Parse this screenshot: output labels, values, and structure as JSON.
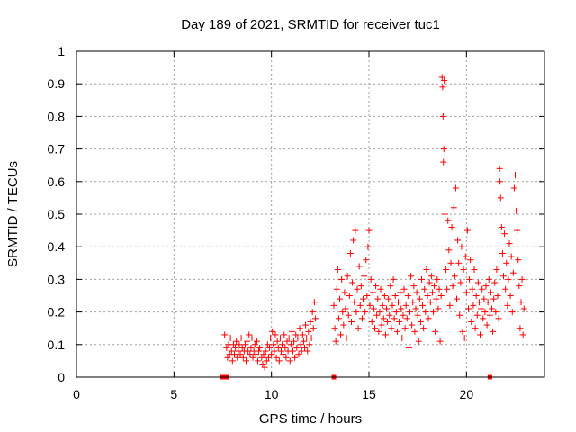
{
  "chart_data": {
    "type": "scatter",
    "title": "Day 189 of 2021, SRMTID for receiver tuc1",
    "xlabel": "GPS time / hours",
    "ylabel": "SRMTID / TECUs",
    "xlim": [
      0,
      24
    ],
    "ylim": [
      0,
      1
    ],
    "xticks": [
      0,
      5,
      10,
      15,
      20
    ],
    "yticks": [
      0,
      0.1,
      0.2,
      0.3,
      0.4,
      0.5,
      0.6,
      0.7,
      0.8,
      0.9,
      1
    ],
    "ytick_labels": [
      "0",
      "0.1",
      "0.2",
      "0.3",
      "0.4",
      "0.5",
      "0.6",
      "0.7",
      "0.8",
      "0.9",
      "1"
    ],
    "grid": true,
    "marker": "+",
    "color": "#ff0000",
    "zero_markers_x": [
      7.5,
      7.6,
      7.7,
      13.2,
      21.2
    ],
    "series": [
      {
        "name": "SRMTID",
        "points": [
          [
            7.6,
            0.13
          ],
          [
            7.7,
            0.09
          ],
          [
            7.75,
            0.06
          ],
          [
            7.8,
            0.1
          ],
          [
            7.85,
            0.07
          ],
          [
            7.9,
            0.12
          ],
          [
            7.95,
            0.08
          ],
          [
            8.0,
            0.05
          ],
          [
            8.05,
            0.1
          ],
          [
            8.1,
            0.07
          ],
          [
            8.15,
            0.09
          ],
          [
            8.2,
            0.11
          ],
          [
            8.25,
            0.06
          ],
          [
            8.3,
            0.08
          ],
          [
            8.35,
            0.1
          ],
          [
            8.4,
            0.07
          ],
          [
            8.45,
            0.12
          ],
          [
            8.5,
            0.09
          ],
          [
            8.55,
            0.06
          ],
          [
            8.6,
            0.08
          ],
          [
            8.65,
            0.1
          ],
          [
            8.7,
            0.05
          ],
          [
            8.75,
            0.11
          ],
          [
            8.8,
            0.08
          ],
          [
            8.85,
            0.13
          ],
          [
            8.9,
            0.07
          ],
          [
            8.95,
            0.09
          ],
          [
            9.0,
            0.12
          ],
          [
            9.05,
            0.06
          ],
          [
            9.1,
            0.08
          ],
          [
            9.15,
            0.1
          ],
          [
            9.2,
            0.07
          ],
          [
            9.25,
            0.11
          ],
          [
            9.3,
            0.05
          ],
          [
            9.35,
            0.08
          ],
          [
            9.4,
            0.09
          ],
          [
            9.5,
            0.06
          ],
          [
            9.55,
            0.04
          ],
          [
            9.6,
            0.07
          ],
          [
            9.65,
            0.03
          ],
          [
            9.7,
            0.08
          ],
          [
            9.75,
            0.05
          ],
          [
            9.8,
            0.1
          ],
          [
            9.85,
            0.06
          ],
          [
            9.9,
            0.09
          ],
          [
            9.95,
            0.12
          ],
          [
            10.0,
            0.07
          ],
          [
            10.05,
            0.14
          ],
          [
            10.1,
            0.1
          ],
          [
            10.15,
            0.08
          ],
          [
            10.2,
            0.13
          ],
          [
            10.25,
            0.06
          ],
          [
            10.3,
            0.11
          ],
          [
            10.35,
            0.09
          ],
          [
            10.4,
            0.05
          ],
          [
            10.45,
            0.12
          ],
          [
            10.5,
            0.08
          ],
          [
            10.55,
            0.1
          ],
          [
            10.6,
            0.07
          ],
          [
            10.65,
            0.13
          ],
          [
            10.7,
            0.09
          ],
          [
            10.75,
            0.06
          ],
          [
            10.8,
            0.11
          ],
          [
            10.85,
            0.08
          ],
          [
            10.9,
            0.12
          ],
          [
            10.95,
            0.05
          ],
          [
            11.0,
            0.1
          ],
          [
            11.05,
            0.14
          ],
          [
            11.1,
            0.08
          ],
          [
            11.15,
            0.11
          ],
          [
            11.2,
            0.06
          ],
          [
            11.25,
            0.13
          ],
          [
            11.3,
            0.09
          ],
          [
            11.35,
            0.12
          ],
          [
            11.4,
            0.07
          ],
          [
            11.45,
            0.15
          ],
          [
            11.5,
            0.1
          ],
          [
            11.55,
            0.08
          ],
          [
            11.6,
            0.13
          ],
          [
            11.65,
            0.11
          ],
          [
            11.7,
            0.09
          ],
          [
            11.75,
            0.16
          ],
          [
            11.8,
            0.12
          ],
          [
            11.85,
            0.08
          ],
          [
            11.9,
            0.14
          ],
          [
            11.95,
            0.1
          ],
          [
            12.0,
            0.17
          ],
          [
            12.05,
            0.12
          ],
          [
            12.1,
            0.2
          ],
          [
            12.15,
            0.15
          ],
          [
            12.2,
            0.23
          ],
          [
            12.25,
            0.18
          ],
          [
            13.2,
            0.22
          ],
          [
            13.25,
            0.15
          ],
          [
            13.3,
            0.11
          ],
          [
            13.35,
            0.27
          ],
          [
            13.4,
            0.33
          ],
          [
            13.45,
            0.18
          ],
          [
            13.5,
            0.24
          ],
          [
            13.55,
            0.13
          ],
          [
            13.6,
            0.3
          ],
          [
            13.65,
            0.2
          ],
          [
            13.7,
            0.16
          ],
          [
            13.75,
            0.26
          ],
          [
            13.8,
            0.21
          ],
          [
            13.85,
            0.12
          ],
          [
            13.9,
            0.31
          ],
          [
            13.95,
            0.19
          ],
          [
            14.0,
            0.25
          ],
          [
            14.05,
            0.38
          ],
          [
            14.1,
            0.17
          ],
          [
            14.15,
            0.29
          ],
          [
            14.2,
            0.42
          ],
          [
            14.25,
            0.23
          ],
          [
            14.3,
            0.45
          ],
          [
            14.35,
            0.2
          ],
          [
            14.4,
            0.27
          ],
          [
            14.45,
            0.15
          ],
          [
            14.5,
            0.34
          ],
          [
            14.55,
            0.22
          ],
          [
            14.6,
            0.28
          ],
          [
            14.65,
            0.18
          ],
          [
            14.7,
            0.24
          ],
          [
            14.75,
            0.31
          ],
          [
            14.8,
            0.2
          ],
          [
            14.85,
            0.36
          ],
          [
            14.9,
            0.25
          ],
          [
            14.95,
            0.4
          ],
          [
            15.0,
            0.45
          ],
          [
            15.05,
            0.22
          ],
          [
            15.1,
            0.3
          ],
          [
            15.15,
            0.17
          ],
          [
            15.2,
            0.26
          ],
          [
            15.25,
            0.21
          ],
          [
            15.3,
            0.15
          ],
          [
            15.35,
            0.28
          ],
          [
            15.4,
            0.19
          ],
          [
            15.45,
            0.24
          ],
          [
            15.5,
            0.14
          ],
          [
            15.55,
            0.2
          ],
          [
            15.6,
            0.27
          ],
          [
            15.65,
            0.16
          ],
          [
            15.7,
            0.22
          ],
          [
            15.75,
            0.18
          ],
          [
            15.8,
            0.25
          ],
          [
            15.85,
            0.13
          ],
          [
            15.9,
            0.21
          ],
          [
            15.95,
            0.17
          ],
          [
            16.0,
            0.24
          ],
          [
            16.05,
            0.19
          ],
          [
            16.1,
            0.28
          ],
          [
            16.15,
            0.15
          ],
          [
            16.2,
            0.22
          ],
          [
            16.25,
            0.3
          ],
          [
            16.3,
            0.18
          ],
          [
            16.35,
            0.25
          ],
          [
            16.4,
            0.2
          ],
          [
            16.45,
            0.14
          ],
          [
            16.5,
            0.23
          ],
          [
            16.55,
            0.17
          ],
          [
            16.6,
            0.26
          ],
          [
            16.65,
            0.21
          ],
          [
            16.7,
            0.12
          ],
          [
            16.75,
            0.19
          ],
          [
            16.8,
            0.27
          ],
          [
            16.85,
            0.15
          ],
          [
            16.9,
            0.22
          ],
          [
            16.95,
            0.18
          ],
          [
            17.0,
            0.25
          ],
          [
            17.05,
            0.09
          ],
          [
            17.1,
            0.2
          ],
          [
            17.15,
            0.31
          ],
          [
            17.2,
            0.16
          ],
          [
            17.25,
            0.23
          ],
          [
            17.3,
            0.28
          ],
          [
            17.35,
            0.14
          ],
          [
            17.4,
            0.21
          ],
          [
            17.45,
            0.26
          ],
          [
            17.5,
            0.19
          ],
          [
            17.55,
            0.11
          ],
          [
            17.6,
            0.24
          ],
          [
            17.65,
            0.17
          ],
          [
            17.7,
            0.3
          ],
          [
            17.75,
            0.22
          ],
          [
            17.8,
            0.15
          ],
          [
            17.85,
            0.27
          ],
          [
            17.9,
            0.2
          ],
          [
            17.95,
            0.33
          ],
          [
            18.0,
            0.25
          ],
          [
            18.05,
            0.18
          ],
          [
            18.1,
            0.29
          ],
          [
            18.15,
            0.23
          ],
          [
            18.2,
            0.31
          ],
          [
            18.25,
            0.26
          ],
          [
            18.3,
            0.2
          ],
          [
            18.35,
            0.28
          ],
          [
            18.4,
            0.14
          ],
          [
            18.45,
            0.24
          ],
          [
            18.5,
            0.3
          ],
          [
            18.55,
            0.21
          ],
          [
            18.6,
            0.27
          ],
          [
            18.65,
            0.11
          ],
          [
            18.7,
            0.25
          ],
          [
            18.75,
            0.92
          ],
          [
            18.78,
            0.89
          ],
          [
            18.8,
            0.8
          ],
          [
            18.82,
            0.66
          ],
          [
            18.84,
            0.7
          ],
          [
            18.86,
            0.91
          ],
          [
            18.9,
            0.5
          ],
          [
            18.95,
            0.33
          ],
          [
            19.0,
            0.27
          ],
          [
            19.05,
            0.48
          ],
          [
            19.1,
            0.39
          ],
          [
            19.15,
            0.22
          ],
          [
            19.2,
            0.35
          ],
          [
            19.25,
            0.46
          ],
          [
            19.3,
            0.28
          ],
          [
            19.35,
            0.52
          ],
          [
            19.4,
            0.31
          ],
          [
            19.45,
            0.58
          ],
          [
            19.5,
            0.24
          ],
          [
            19.55,
            0.42
          ],
          [
            19.6,
            0.35
          ],
          [
            19.65,
            0.19
          ],
          [
            19.7,
            0.29
          ],
          [
            19.75,
            0.4
          ],
          [
            19.8,
            0.14
          ],
          [
            19.85,
            0.33
          ],
          [
            19.9,
            0.12
          ],
          [
            19.95,
            0.37
          ],
          [
            20.0,
            0.26
          ],
          [
            20.05,
            0.45
          ],
          [
            20.1,
            0.21
          ],
          [
            20.15,
            0.3
          ],
          [
            20.2,
            0.36
          ],
          [
            20.25,
            0.17
          ],
          [
            20.3,
            0.27
          ],
          [
            20.35,
            0.22
          ],
          [
            20.4,
            0.33
          ],
          [
            20.45,
            0.15
          ],
          [
            20.5,
            0.25
          ],
          [
            20.55,
            0.19
          ],
          [
            20.6,
            0.29
          ],
          [
            20.65,
            0.23
          ],
          [
            20.7,
            0.13
          ],
          [
            20.75,
            0.21
          ],
          [
            20.8,
            0.27
          ],
          [
            20.85,
            0.18
          ],
          [
            20.9,
            0.24
          ],
          [
            20.95,
            0.2
          ],
          [
            21.0,
            0.28
          ],
          [
            21.05,
            0.16
          ],
          [
            21.1,
            0.23
          ],
          [
            21.15,
            0.3
          ],
          [
            21.2,
            0.19
          ],
          [
            21.25,
            0.26
          ],
          [
            21.3,
            0.21
          ],
          [
            21.35,
            0.14
          ],
          [
            21.4,
            0.24
          ],
          [
            21.45,
            0.29
          ],
          [
            21.5,
            0.2
          ],
          [
            21.55,
            0.33
          ],
          [
            21.6,
            0.25
          ],
          [
            21.65,
            0.18
          ],
          [
            21.7,
            0.64
          ],
          [
            21.72,
            0.6
          ],
          [
            21.75,
            0.55
          ],
          [
            21.8,
            0.46
          ],
          [
            21.85,
            0.38
          ],
          [
            21.9,
            0.31
          ],
          [
            21.95,
            0.44
          ],
          [
            22.0,
            0.27
          ],
          [
            22.05,
            0.35
          ],
          [
            22.1,
            0.22
          ],
          [
            22.15,
            0.3
          ],
          [
            22.2,
            0.41
          ],
          [
            22.25,
            0.25
          ],
          [
            22.3,
            0.37
          ],
          [
            22.35,
            0.2
          ],
          [
            22.4,
            0.32
          ],
          [
            22.45,
            0.58
          ],
          [
            22.5,
            0.62
          ],
          [
            22.55,
            0.51
          ],
          [
            22.6,
            0.45
          ],
          [
            22.65,
            0.36
          ],
          [
            22.7,
            0.28
          ],
          [
            22.75,
            0.15
          ],
          [
            22.8,
            0.23
          ],
          [
            22.85,
            0.3
          ],
          [
            22.9,
            0.13
          ],
          [
            22.95,
            0.21
          ]
        ]
      }
    ]
  }
}
